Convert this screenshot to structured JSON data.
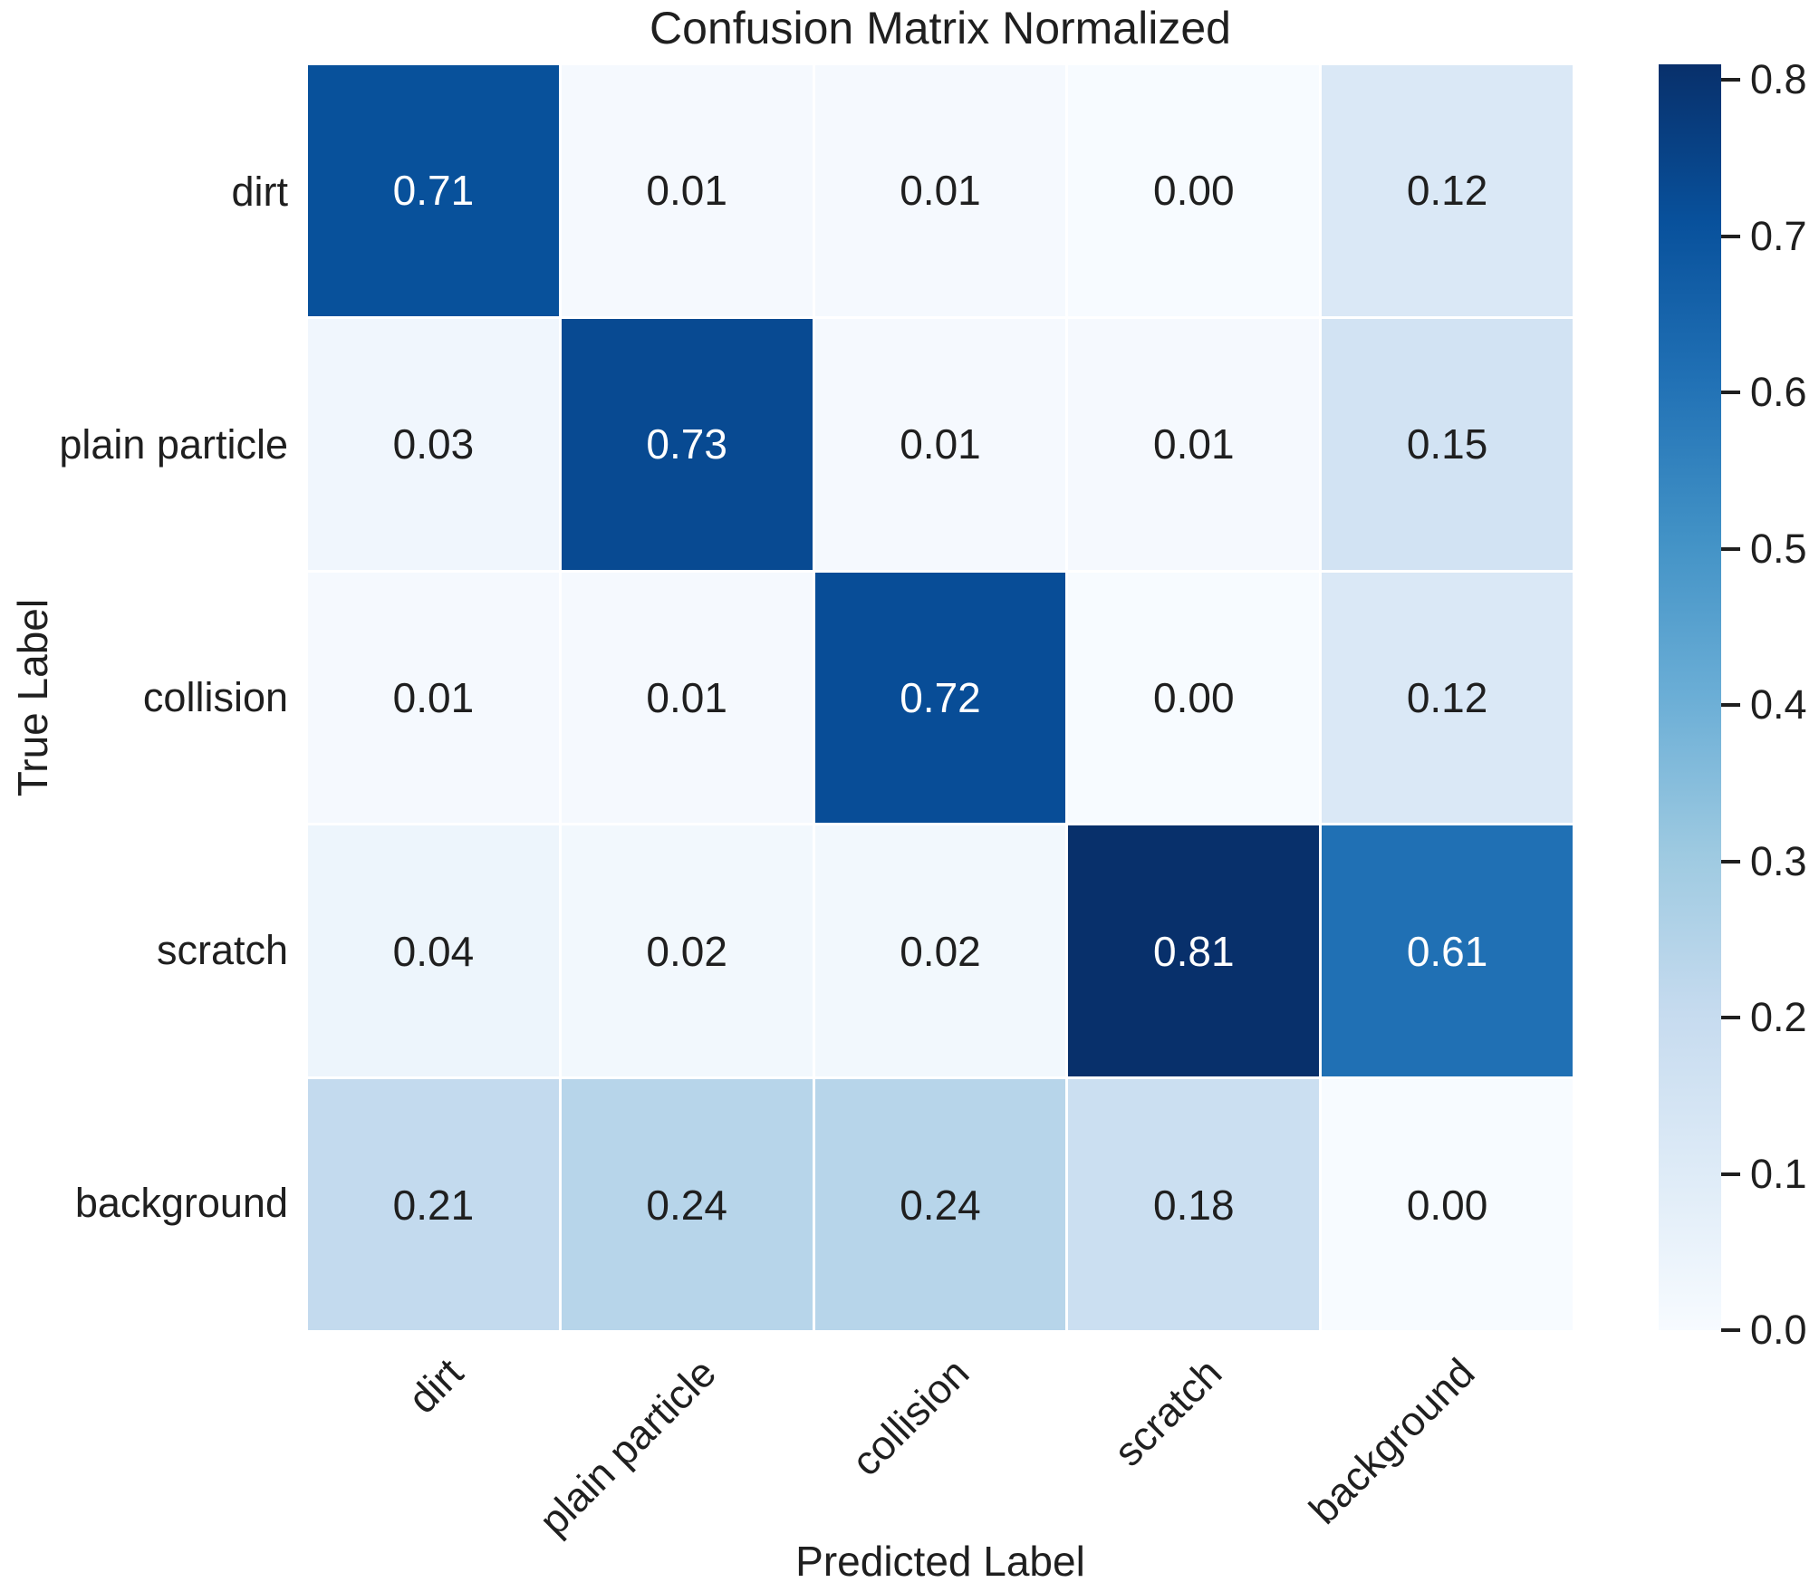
{
  "title": "Confusion Matrix Normalized",
  "chart_data": {
    "type": "heatmap",
    "title": "Confusion Matrix Normalized",
    "xlabel": "Predicted Label",
    "ylabel": "True Label",
    "x_categories": [
      "dirt",
      "plain particle",
      "collision",
      "scratch",
      "background"
    ],
    "y_categories": [
      "dirt",
      "plain particle",
      "collision",
      "scratch",
      "background"
    ],
    "rows": [
      [
        0.71,
        0.01,
        0.01,
        0.0,
        0.12
      ],
      [
        0.03,
        0.73,
        0.01,
        0.01,
        0.15
      ],
      [
        0.01,
        0.01,
        0.72,
        0.0,
        0.12
      ],
      [
        0.04,
        0.02,
        0.02,
        0.81,
        0.61
      ],
      [
        0.21,
        0.24,
        0.24,
        0.18,
        0.0
      ]
    ],
    "value_decimals": 2,
    "vmin": 0.0,
    "vmax": 0.81,
    "grid_line_color": "#ffffff",
    "background_color": "#ffffff",
    "colormap": {
      "name": "Blues",
      "stops": [
        "#f7fbff",
        "#deebf7",
        "#c6dbef",
        "#9ecae1",
        "#6baed6",
        "#4292c6",
        "#2171b5",
        "#08519c",
        "#08306b"
      ]
    },
    "annotation_color_dark": "#1f1f1f",
    "annotation_color_light": "#ffffff",
    "colorbar": {
      "ticks": [
        0.8,
        0.7,
        0.6,
        0.5,
        0.4,
        0.3,
        0.2,
        0.1,
        0.0
      ],
      "tick_decimals": 1,
      "position": "right"
    },
    "legend_position": "none",
    "grid_on": true
  }
}
